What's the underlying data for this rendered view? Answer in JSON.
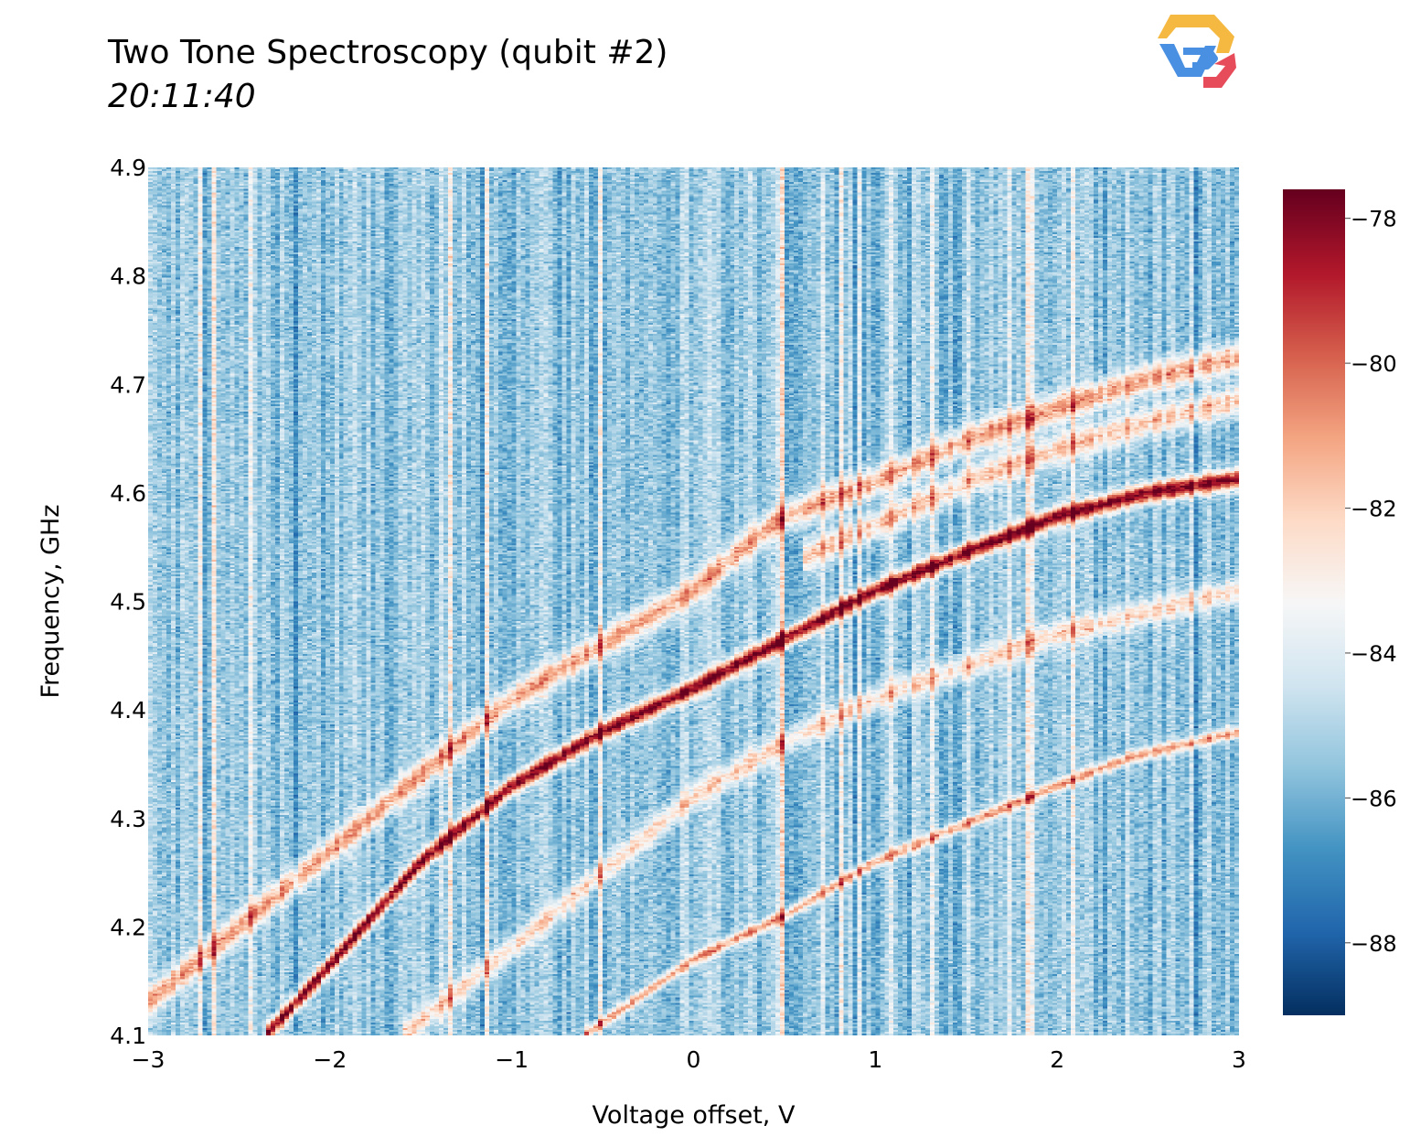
{
  "title": "Two Tone Spectroscopy (qubit #2)",
  "subtitle": "20:11:40",
  "logo": {
    "icon": "quantum-lab-logo",
    "colors": [
      "#f5b942",
      "#4a90e2",
      "#e74c5a"
    ]
  },
  "chart_data": {
    "type": "heatmap",
    "xlabel": "Voltage offset, V",
    "ylabel": "Frequency, GHz",
    "xlim": [
      -3,
      3
    ],
    "ylim": [
      4.1,
      4.9
    ],
    "x_ticks": [
      -3,
      -2,
      -1,
      0,
      1,
      2,
      3
    ],
    "x_tick_labels": [
      "−3",
      "−2",
      "−1",
      "0",
      "1",
      "2",
      "3"
    ],
    "y_ticks": [
      4.1,
      4.2,
      4.3,
      4.4,
      4.5,
      4.6,
      4.7,
      4.8,
      4.9
    ],
    "y_tick_labels": [
      "4.1",
      "4.2",
      "4.3",
      "4.4",
      "4.5",
      "4.6",
      "4.7",
      "4.8",
      "4.9"
    ],
    "colorscale": "RdBu (reversed)",
    "colorbar": {
      "range": [
        -89,
        -77.6
      ],
      "ticks": [
        -88,
        -86,
        -84,
        -82,
        -80,
        -78
      ],
      "tick_labels": [
        "−88",
        "−86",
        "−84",
        "−82",
        "−80",
        "−78"
      ]
    },
    "grid": false,
    "background_level": -85.5,
    "features": [
      {
        "label": "main qubit line",
        "peak": -77.8,
        "points": [
          [
            -2.35,
            4.1
          ],
          [
            -2.0,
            4.165
          ],
          [
            -1.5,
            4.26
          ],
          [
            -1.0,
            4.33
          ],
          [
            -0.5,
            4.38
          ],
          [
            0.0,
            4.42
          ],
          [
            0.5,
            4.465
          ],
          [
            1.0,
            4.51
          ],
          [
            1.5,
            4.545
          ],
          [
            2.0,
            4.578
          ],
          [
            2.5,
            4.6
          ],
          [
            3.0,
            4.613
          ]
        ]
      },
      {
        "label": "upper branch",
        "peak": -81.0,
        "points": [
          [
            -3.0,
            4.13
          ],
          [
            -2.5,
            4.2
          ],
          [
            -2.0,
            4.27
          ],
          [
            -1.5,
            4.34
          ],
          [
            -1.0,
            4.41
          ],
          [
            -0.5,
            4.46
          ],
          [
            0.0,
            4.51
          ],
          [
            0.35,
            4.56
          ],
          [
            0.5,
            4.578
          ],
          [
            1.0,
            4.61
          ],
          [
            1.5,
            4.648
          ],
          [
            2.0,
            4.678
          ],
          [
            2.5,
            4.705
          ],
          [
            3.0,
            4.725
          ]
        ]
      },
      {
        "label": "second upper branch",
        "peak": -81.8,
        "points": [
          [
            0.6,
            4.54
          ],
          [
            1.0,
            4.57
          ],
          [
            1.5,
            4.61
          ],
          [
            2.0,
            4.64
          ],
          [
            2.5,
            4.665
          ],
          [
            3.0,
            4.685
          ]
        ]
      },
      {
        "label": "lower faint branch",
        "peak": -82.2,
        "points": [
          [
            -1.6,
            4.1
          ],
          [
            -1.0,
            4.18
          ],
          [
            -0.5,
            4.25
          ],
          [
            0.0,
            4.32
          ],
          [
            0.5,
            4.37
          ],
          [
            1.0,
            4.41
          ],
          [
            1.5,
            4.44
          ],
          [
            2.0,
            4.47
          ],
          [
            2.5,
            4.49
          ],
          [
            3.0,
            4.51
          ]
        ]
      },
      {
        "label": "lowest line",
        "peak": -81.0,
        "points": [
          [
            -0.6,
            4.1
          ],
          [
            0.0,
            4.17
          ],
          [
            0.5,
            4.21
          ],
          [
            1.0,
            4.26
          ],
          [
            1.5,
            4.295
          ],
          [
            2.0,
            4.33
          ],
          [
            2.4,
            4.356
          ],
          [
            3.0,
            4.38
          ]
        ]
      }
    ]
  }
}
